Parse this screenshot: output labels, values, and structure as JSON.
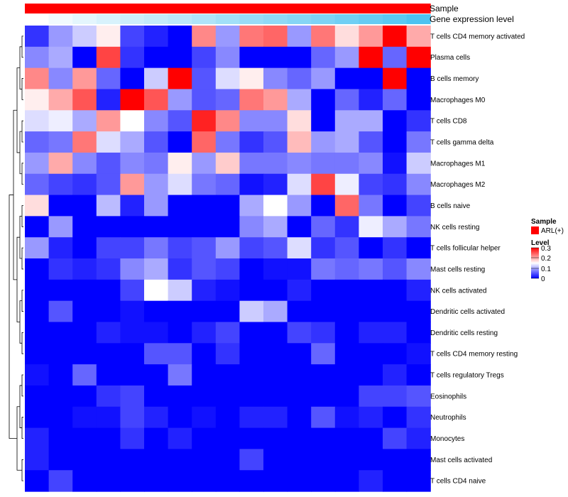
{
  "chart_data": {
    "type": "heatmap",
    "annotations": [
      {
        "label": "Sample"
      },
      {
        "label": "Gene expression level"
      }
    ],
    "rows": [
      "T cells CD4 memory activated",
      "Plasma cells",
      "B cells memory",
      "Macrophages M0",
      "T cells CD8",
      "T cells gamma delta",
      "Macrophages M1",
      "Macrophages M2",
      "B cells naive",
      "NK cells resting",
      "T cells follicular helper",
      "Mast cells resting",
      "NK cells activated",
      "Dendritic cells activated",
      "Dendritic cells resting",
      "T cells CD4 memory resting",
      "T cells regulatory  Tregs",
      "Eosinophils",
      "Neutrophils",
      "Monocytes",
      "Mast cells activated",
      "T cells CD4 naive"
    ],
    "values": [
      [
        0.03,
        0.09,
        0.12,
        0.16,
        0.04,
        0.02,
        0.0,
        0.22,
        0.09,
        0.23,
        0.24,
        0.09,
        0.23,
        0.17,
        0.21,
        0.3,
        0.2
      ],
      [
        0.08,
        0.1,
        0.0,
        0.26,
        0.03,
        0.0,
        0.0,
        0.04,
        0.08,
        0.0,
        0.0,
        0.0,
        0.06,
        0.09,
        0.3,
        0.06,
        0.3
      ],
      [
        0.22,
        0.08,
        0.21,
        0.06,
        0.0,
        0.12,
        0.3,
        0.05,
        0.13,
        0.16,
        0.08,
        0.06,
        0.09,
        0.0,
        0.0,
        0.3,
        0.0
      ],
      [
        0.16,
        0.2,
        0.25,
        0.02,
        0.3,
        0.25,
        0.09,
        0.05,
        0.06,
        0.23,
        0.21,
        0.1,
        0.0,
        0.06,
        0.02,
        0.06,
        0.0
      ],
      [
        0.13,
        0.14,
        0.1,
        0.21,
        0.15,
        0.08,
        0.05,
        0.28,
        0.22,
        0.08,
        0.08,
        0.17,
        0.0,
        0.1,
        0.1,
        0.0,
        0.03
      ],
      [
        0.06,
        0.07,
        0.23,
        0.13,
        0.1,
        0.05,
        0.0,
        0.24,
        0.07,
        0.03,
        0.05,
        0.19,
        0.09,
        0.1,
        0.05,
        0.0,
        0.07
      ],
      [
        0.09,
        0.2,
        0.08,
        0.05,
        0.08,
        0.07,
        0.16,
        0.09,
        0.18,
        0.07,
        0.07,
        0.08,
        0.07,
        0.07,
        0.08,
        0.01,
        0.12
      ],
      [
        0.06,
        0.04,
        0.03,
        0.05,
        0.21,
        0.09,
        0.13,
        0.07,
        0.06,
        0.01,
        0.02,
        0.13,
        0.26,
        0.14,
        0.04,
        0.03,
        0.08
      ],
      [
        0.17,
        0.0,
        0.0,
        0.11,
        0.02,
        0.09,
        0.0,
        0.0,
        0.0,
        0.1,
        0.15,
        0.09,
        0.0,
        0.24,
        0.07,
        0.0,
        0.04
      ],
      [
        0.0,
        0.09,
        0.0,
        0.0,
        0.0,
        0.0,
        0.0,
        0.0,
        0.0,
        0.08,
        0.1,
        0.0,
        0.06,
        0.03,
        0.14,
        0.1,
        0.07
      ],
      [
        0.09,
        0.02,
        0.0,
        0.04,
        0.04,
        0.07,
        0.04,
        0.05,
        0.09,
        0.04,
        0.05,
        0.13,
        0.03,
        0.05,
        0.0,
        0.03,
        0.0
      ],
      [
        0.0,
        0.03,
        0.02,
        0.03,
        0.08,
        0.1,
        0.03,
        0.05,
        0.04,
        0.0,
        0.01,
        0.01,
        0.07,
        0.06,
        0.07,
        0.05,
        0.08
      ],
      [
        0.0,
        0.0,
        0.0,
        0.0,
        0.04,
        0.15,
        0.12,
        0.02,
        0.01,
        0.0,
        0.0,
        0.02,
        0.0,
        0.0,
        0.0,
        0.0,
        0.02
      ],
      [
        0.0,
        0.05,
        0.0,
        0.0,
        0.01,
        0.0,
        0.0,
        0.0,
        0.0,
        0.12,
        0.1,
        0.0,
        0.0,
        0.0,
        0.0,
        0.0,
        0.0
      ],
      [
        0.0,
        0.0,
        0.0,
        0.02,
        0.01,
        0.01,
        0.0,
        0.02,
        0.04,
        0.0,
        0.0,
        0.04,
        0.03,
        0.0,
        0.02,
        0.02,
        0.0
      ],
      [
        0.0,
        0.0,
        0.0,
        0.0,
        0.0,
        0.05,
        0.05,
        0.0,
        0.03,
        0.0,
        0.0,
        0.0,
        0.06,
        0.0,
        0.0,
        0.0,
        0.01
      ],
      [
        0.01,
        0.0,
        0.06,
        0.0,
        0.0,
        0.0,
        0.07,
        0.0,
        0.0,
        0.0,
        0.0,
        0.0,
        0.0,
        0.0,
        0.0,
        0.02,
        0.0
      ],
      [
        0.0,
        0.0,
        0.0,
        0.03,
        0.04,
        0.0,
        0.0,
        0.0,
        0.0,
        0.0,
        0.0,
        0.0,
        0.0,
        0.0,
        0.04,
        0.04,
        0.05
      ],
      [
        0.0,
        0.0,
        0.01,
        0.01,
        0.04,
        0.02,
        0.0,
        0.01,
        0.0,
        0.02,
        0.02,
        0.0,
        0.05,
        0.01,
        0.02,
        0.0,
        0.03
      ],
      [
        0.02,
        0.0,
        0.0,
        0.0,
        0.03,
        0.0,
        0.02,
        0.0,
        0.0,
        0.0,
        0.0,
        0.0,
        0.0,
        0.0,
        0.0,
        0.04,
        0.02
      ],
      [
        0.02,
        0.0,
        0.0,
        0.0,
        0.0,
        0.0,
        0.0,
        0.0,
        0.0,
        0.04,
        0.0,
        0.0,
        0.0,
        0.0,
        0.0,
        0.0,
        0.0
      ],
      [
        0.0,
        0.04,
        0.0,
        0.0,
        0.0,
        0.0,
        0.0,
        0.0,
        0.0,
        0.0,
        0.0,
        0.0,
        0.0,
        0.0,
        0.02,
        0.0,
        0.0
      ]
    ],
    "gene_expression": [
      0.0,
      0.08,
      0.15,
      0.22,
      0.28,
      0.33,
      0.38,
      0.45,
      0.52,
      0.58,
      0.63,
      0.68,
      0.73,
      0.8,
      0.86,
      0.92,
      1.0
    ],
    "sample_color": "#ff0000",
    "gene_expression_colors": [
      "#ffffff",
      "#4dc3f1"
    ],
    "scale": {
      "min": 0,
      "max": 0.3,
      "low_color": "#0000ff",
      "mid_color": "#ffffff",
      "high_color": "#ff0000"
    },
    "legend": {
      "sample_title": "Sample",
      "sample_item": "ARL(+)",
      "level_title": "Level",
      "ticks": [
        "0.3",
        "0.2",
        "0.1",
        "0"
      ]
    }
  }
}
